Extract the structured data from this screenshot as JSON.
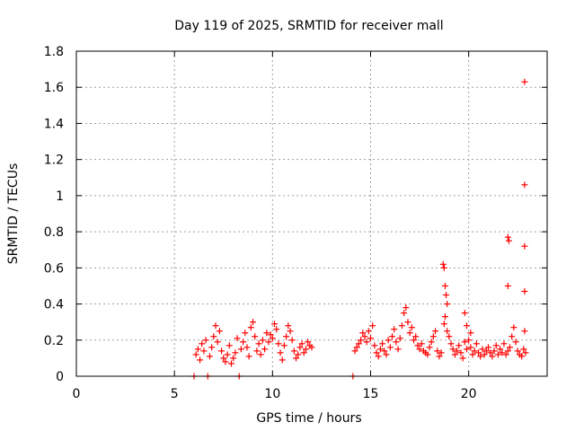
{
  "chart_data": {
    "type": "scatter",
    "title": "Day 119 of 2025, SRMTID for receiver mall",
    "xlabel": "GPS time / hours",
    "ylabel": "SRMTID / TECUs",
    "xlim": [
      0,
      24
    ],
    "ylim": [
      0,
      1.8
    ],
    "x_ticks": [
      0,
      5,
      10,
      15,
      20
    ],
    "x_tick_labels": [
      "0",
      "5",
      "10",
      "15",
      "20"
    ],
    "y_ticks": [
      0,
      0.2,
      0.4,
      0.6,
      0.8,
      1,
      1.2,
      1.4,
      1.6,
      1.8
    ],
    "y_tick_labels": [
      "0",
      "0.2",
      "0.4",
      "0.6",
      "0.8",
      "1",
      "1.2",
      "1.4",
      "1.6",
      "1.8"
    ],
    "grid": true,
    "marker": "+",
    "color": "#ff0000",
    "series": [
      {
        "name": "SRMTID",
        "x": [
          6.0,
          6.7,
          8.3,
          14.1,
          6.1,
          6.2,
          6.3,
          6.4,
          6.5,
          6.6,
          6.8,
          6.9,
          7.0,
          7.1,
          7.2,
          7.3,
          7.4,
          7.5,
          7.6,
          7.7,
          7.8,
          7.9,
          8.0,
          8.1,
          8.2,
          8.4,
          8.5,
          8.6,
          8.7,
          8.8,
          8.9,
          9.0,
          9.1,
          9.2,
          9.3,
          9.4,
          9.5,
          9.6,
          9.7,
          9.8,
          9.9,
          10.0,
          10.1,
          10.2,
          10.3,
          10.4,
          10.5,
          10.6,
          10.7,
          10.8,
          10.9,
          11.0,
          11.1,
          11.2,
          11.3,
          11.4,
          11.5,
          11.6,
          11.7,
          11.8,
          11.9,
          12.0,
          14.2,
          14.3,
          14.4,
          14.5,
          14.6,
          14.7,
          14.8,
          14.9,
          15.0,
          15.1,
          15.2,
          15.3,
          15.4,
          15.5,
          15.6,
          15.7,
          15.8,
          15.9,
          16.0,
          16.1,
          16.2,
          16.3,
          16.4,
          16.5,
          16.6,
          16.7,
          16.8,
          16.9,
          17.0,
          17.1,
          17.2,
          17.3,
          17.4,
          17.5,
          17.6,
          17.7,
          17.8,
          17.9,
          18.0,
          18.1,
          18.2,
          18.3,
          18.4,
          18.5,
          18.6,
          18.7,
          18.75,
          18.8,
          18.85,
          18.9,
          18.8,
          18.75,
          18.9,
          19.0,
          19.1,
          19.2,
          19.3,
          19.4,
          19.5,
          19.6,
          19.7,
          19.8,
          19.9,
          20.0,
          20.1,
          20.2,
          20.3,
          20.4,
          20.5,
          20.6,
          20.7,
          20.8,
          20.9,
          21.0,
          21.1,
          21.2,
          21.3,
          21.4,
          21.5,
          21.6,
          21.7,
          21.8,
          21.9,
          22.0,
          22.1,
          22.2,
          22.3,
          22.4,
          22.5,
          22.6,
          22.7,
          22.8,
          22.9,
          19.8,
          19.9,
          20.1,
          22.0,
          22.05,
          22.0,
          22.85,
          22.85,
          22.85,
          22.85,
          22.85
        ],
        "y": [
          0.0,
          0.0,
          0.0,
          0.0,
          0.12,
          0.15,
          0.09,
          0.18,
          0.14,
          0.2,
          0.11,
          0.16,
          0.22,
          0.28,
          0.19,
          0.25,
          0.14,
          0.1,
          0.08,
          0.12,
          0.17,
          0.07,
          0.1,
          0.13,
          0.21,
          0.15,
          0.19,
          0.24,
          0.16,
          0.11,
          0.27,
          0.3,
          0.22,
          0.14,
          0.18,
          0.12,
          0.2,
          0.15,
          0.24,
          0.19,
          0.23,
          0.21,
          0.29,
          0.26,
          0.18,
          0.13,
          0.09,
          0.17,
          0.22,
          0.28,
          0.25,
          0.2,
          0.14,
          0.1,
          0.12,
          0.16,
          0.18,
          0.13,
          0.15,
          0.19,
          0.17,
          0.16,
          0.14,
          0.16,
          0.18,
          0.2,
          0.24,
          0.22,
          0.19,
          0.25,
          0.21,
          0.28,
          0.17,
          0.13,
          0.11,
          0.15,
          0.18,
          0.14,
          0.12,
          0.2,
          0.16,
          0.22,
          0.26,
          0.19,
          0.15,
          0.21,
          0.28,
          0.35,
          0.38,
          0.3,
          0.24,
          0.27,
          0.2,
          0.22,
          0.17,
          0.15,
          0.18,
          0.14,
          0.13,
          0.12,
          0.16,
          0.19,
          0.22,
          0.25,
          0.14,
          0.11,
          0.13,
          0.62,
          0.6,
          0.5,
          0.45,
          0.4,
          0.33,
          0.29,
          0.25,
          0.22,
          0.18,
          0.15,
          0.12,
          0.14,
          0.17,
          0.13,
          0.1,
          0.19,
          0.15,
          0.2,
          0.16,
          0.12,
          0.14,
          0.18,
          0.13,
          0.11,
          0.15,
          0.12,
          0.14,
          0.16,
          0.13,
          0.11,
          0.14,
          0.17,
          0.12,
          0.15,
          0.13,
          0.18,
          0.12,
          0.14,
          0.16,
          0.22,
          0.27,
          0.19,
          0.14,
          0.12,
          0.11,
          0.15,
          0.13,
          0.35,
          0.28,
          0.24,
          0.77,
          0.75,
          0.5,
          1.63,
          1.06,
          0.72,
          0.47,
          0.25
        ]
      }
    ]
  }
}
